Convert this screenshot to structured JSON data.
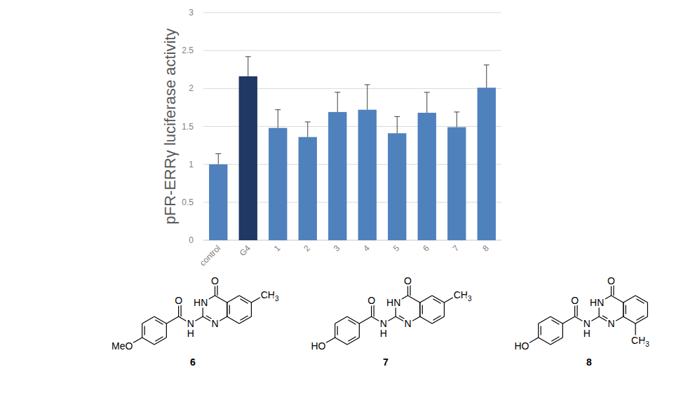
{
  "chart_data": {
    "type": "bar",
    "y_label": "pFR-ERRγ luciferase activity",
    "categories": [
      "control",
      "G4",
      "1",
      "2",
      "3",
      "4",
      "5",
      "6",
      "7",
      "8"
    ],
    "values": [
      1.0,
      2.16,
      1.48,
      1.36,
      1.69,
      1.72,
      1.41,
      1.68,
      1.49,
      2.01
    ],
    "errors": [
      0.14,
      0.26,
      0.24,
      0.2,
      0.26,
      0.33,
      0.22,
      0.27,
      0.2,
      0.3
    ],
    "colors": [
      "#4f81bd",
      "#1f3864",
      "#4f81bd",
      "#4f81bd",
      "#4f81bd",
      "#4f81bd",
      "#4f81bd",
      "#4f81bd",
      "#4f81bd",
      "#4f81bd"
    ],
    "ylim": [
      0,
      3
    ],
    "yticks": [
      0,
      0.5,
      1,
      1.5,
      2,
      2.5,
      3
    ],
    "grid": true
  },
  "structures": [
    {
      "label": "6",
      "atoms": {
        "quinazolinone_o": "O",
        "ring_nh": "HN",
        "ring_n": "N",
        "amide_o": "O",
        "link_n": "N",
        "link_h": "H",
        "para_group": "MeO",
        "methyl_6": "CH3"
      }
    },
    {
      "label": "7",
      "atoms": {
        "quinazolinone_o": "O",
        "ring_nh": "HN",
        "ring_n": "N",
        "amide_o": "O",
        "link_n": "N",
        "link_h": "H",
        "para_group": "HO",
        "methyl_6": "CH3"
      }
    },
    {
      "label": "8",
      "atoms": {
        "quinazolinone_o": "O",
        "ring_nh": "HN",
        "ring_n": "N",
        "amide_o": "O",
        "link_n": "N",
        "link_h": "H",
        "para_group": "HO",
        "methyl_8": "CH3"
      }
    }
  ]
}
